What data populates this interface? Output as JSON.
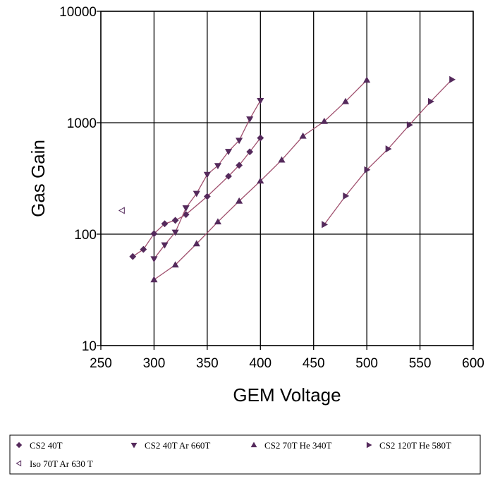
{
  "chart_data": {
    "type": "scatter",
    "xlabel": "GEM Voltage",
    "ylabel": "Gas Gain",
    "xlim": [
      250,
      600
    ],
    "ylim": [
      10,
      10000
    ],
    "y_scale": "log",
    "x_ticks": [
      250,
      300,
      350,
      400,
      450,
      500,
      550,
      600
    ],
    "y_ticks": [
      10,
      100,
      1000,
      10000
    ],
    "x_tick_labels": [
      "250",
      "300",
      "350",
      "400",
      "450",
      "500",
      "550",
      "600"
    ],
    "y_tick_labels": [
      "10",
      "100",
      "1000",
      "10000"
    ],
    "grid": true,
    "legend_position": "bottom",
    "line_color": "#a0506e",
    "marker_color": "#552a5c",
    "series": [
      {
        "name": "CS2 40T",
        "marker": "diamond",
        "x": [
          280,
          290,
          300,
          310,
          320,
          330,
          350,
          370,
          380,
          390,
          400
        ],
        "y": [
          63,
          73,
          101,
          124,
          133,
          150,
          218,
          331,
          415,
          548,
          730
        ]
      },
      {
        "name": "CS2 40T Ar 660T",
        "marker": "triangle-down",
        "x": [
          300,
          310,
          320,
          330,
          340,
          350,
          360,
          370,
          380,
          390,
          400
        ],
        "y": [
          60,
          80,
          104,
          172,
          232,
          343,
          412,
          552,
          694,
          1080,
          1580
        ]
      },
      {
        "name": "CS2 70T He 340T",
        "marker": "triangle-up",
        "x": [
          300,
          320,
          340,
          360,
          380,
          400,
          420,
          440,
          460,
          480,
          500
        ],
        "y": [
          39,
          53,
          82,
          129,
          198,
          300,
          463,
          758,
          1028,
          1550,
          2410
        ]
      },
      {
        "name": "CS2 120T He 580T",
        "marker": "triangle-right",
        "x": [
          460,
          480,
          500,
          520,
          540,
          560,
          580
        ],
        "y": [
          122,
          220,
          378,
          582,
          955,
          1550,
          2440
        ]
      },
      {
        "name": "Iso 70T Ar 630 T",
        "marker": "triangle-left",
        "x": [
          270
        ],
        "y": [
          163
        ]
      }
    ]
  }
}
